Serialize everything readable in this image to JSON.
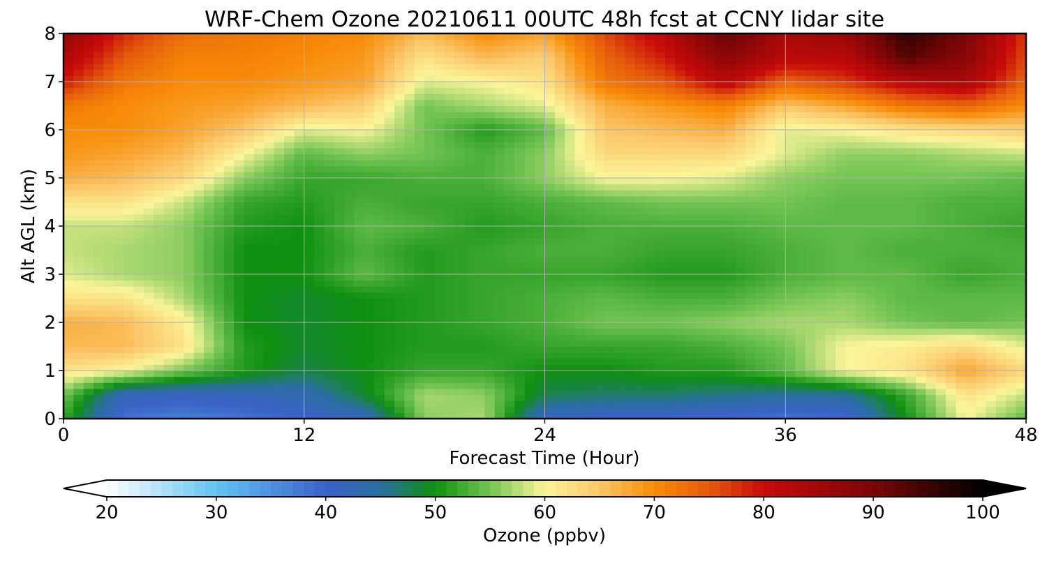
{
  "chart_data": {
    "type": "heatmap",
    "title": "WRF-Chem Ozone  20210611 00UTC 48h fcst at CCNY lidar site",
    "xlabel": "Forecast Time (Hour)",
    "ylabel": "Alt AGL (km)",
    "xlim": [
      0,
      48
    ],
    "ylim": [
      0,
      8
    ],
    "x_ticks": [
      0,
      12,
      24,
      36,
      48
    ],
    "y_ticks": [
      0,
      1,
      2,
      3,
      4,
      5,
      6,
      7,
      8
    ],
    "grid": true,
    "x": [
      0,
      3,
      6,
      9,
      12,
      15,
      18,
      21,
      24,
      27,
      30,
      33,
      36,
      39,
      42,
      45,
      48
    ],
    "y": [
      0,
      0.5,
      1,
      1.5,
      2,
      2.5,
      3,
      3.5,
      4,
      4.5,
      5,
      5.5,
      6,
      6.5,
      7,
      7.5,
      8
    ],
    "z_units": "ppbv",
    "z": [
      [
        52,
        38,
        37,
        38,
        40,
        42,
        56,
        57,
        41,
        40,
        40,
        39,
        38,
        39,
        50,
        60,
        54
      ],
      [
        55,
        42,
        41,
        42,
        43,
        49,
        57,
        56,
        48,
        47,
        47,
        46,
        45,
        45,
        52,
        62,
        58
      ],
      [
        62,
        60,
        55,
        51,
        48,
        50,
        52,
        52,
        50,
        50,
        51,
        51,
        54,
        60,
        62,
        68,
        63
      ],
      [
        66,
        66,
        62,
        51,
        49,
        50,
        51,
        51,
        52,
        52,
        52,
        53,
        55,
        60,
        61,
        63,
        59
      ],
      [
        67,
        66,
        61,
        50,
        49,
        50,
        51,
        52,
        53,
        55,
        55,
        56,
        57,
        57,
        55,
        54,
        55
      ],
      [
        62,
        62,
        57,
        50,
        49,
        50,
        51,
        52,
        53,
        54,
        53,
        53,
        55,
        56,
        54,
        54,
        54
      ],
      [
        59,
        57,
        56,
        50,
        50,
        54,
        51,
        52,
        52,
        52,
        51,
        51,
        53,
        54,
        54,
        52,
        53
      ],
      [
        58,
        57,
        56,
        50,
        50,
        53,
        51,
        52,
        53,
        53,
        52,
        52,
        53,
        54,
        53,
        53,
        53
      ],
      [
        58,
        58,
        56,
        51,
        50,
        54,
        53,
        51,
        52,
        53,
        53,
        53,
        54,
        54,
        54,
        53,
        52
      ],
      [
        62,
        62,
        58,
        52,
        51,
        53,
        52,
        52,
        53,
        54,
        55,
        55,
        55,
        54,
        54,
        53,
        53
      ],
      [
        67,
        66,
        63,
        56,
        52,
        52,
        53,
        53,
        56,
        60,
        60,
        59,
        56,
        55,
        55,
        55,
        54
      ],
      [
        69,
        68,
        66,
        60,
        54,
        56,
        55,
        53,
        56,
        63,
        63,
        63,
        59,
        56,
        56,
        57,
        58
      ],
      [
        70,
        70,
        68,
        65,
        59,
        60,
        55,
        51,
        54,
        65,
        66,
        67,
        59,
        60,
        62,
        63,
        64
      ],
      [
        72,
        70,
        69,
        68,
        66,
        64,
        55,
        57,
        59,
        67,
        69,
        71,
        65,
        68,
        72,
        74,
        70
      ],
      [
        79,
        72,
        70,
        70,
        69,
        68,
        59,
        60,
        62,
        72,
        75,
        82,
        74,
        77,
        82,
        84,
        74
      ],
      [
        83,
        75,
        71,
        71,
        70,
        69,
        62,
        66,
        64,
        74,
        79,
        88,
        82,
        82,
        93,
        88,
        76
      ],
      [
        87,
        78,
        73,
        72,
        71,
        70,
        66,
        70,
        68,
        76,
        82,
        92,
        84,
        86,
        96,
        90,
        77
      ]
    ],
    "colorbar": {
      "label": "Ozone  (ppbv)",
      "min": 20,
      "max": 100,
      "ticks": [
        20,
        30,
        40,
        50,
        60,
        70,
        80,
        90,
        100
      ],
      "extend": "both",
      "stops": [
        {
          "v": 20,
          "c": "#ffffff"
        },
        {
          "v": 30,
          "c": "#62c2f2"
        },
        {
          "v": 40,
          "c": "#3a62c8"
        },
        {
          "v": 45,
          "c": "#2a6ea0"
        },
        {
          "v": 50,
          "c": "#0f9010"
        },
        {
          "v": 55,
          "c": "#72c452"
        },
        {
          "v": 60,
          "c": "#fbf59a"
        },
        {
          "v": 65,
          "c": "#fbc668"
        },
        {
          "v": 70,
          "c": "#f88c08"
        },
        {
          "v": 75,
          "c": "#e55a0c"
        },
        {
          "v": 80,
          "c": "#c80a0a"
        },
        {
          "v": 90,
          "c": "#7a0606"
        },
        {
          "v": 100,
          "c": "#000000"
        }
      ]
    }
  }
}
